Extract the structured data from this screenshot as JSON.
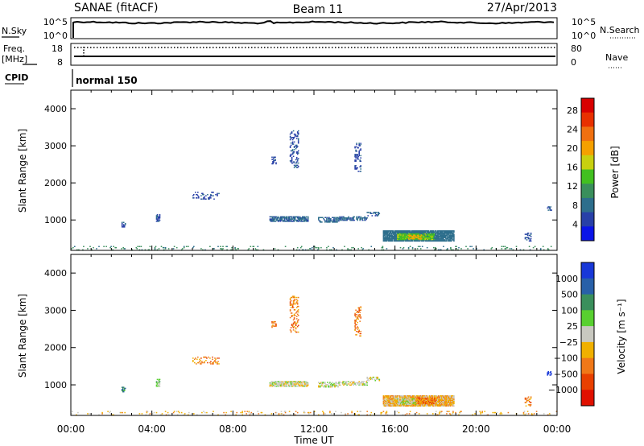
{
  "header": {
    "title": "SANAE (fitACF)",
    "beam": "Beam 11",
    "date": "27/Apr/2013"
  },
  "top_panels": {
    "nsky_label": "N.Sky",
    "nsky_ticks": [
      "10^5",
      "10^0"
    ],
    "nsearch_label": "N.Search",
    "nsearch_ticks": [
      "10^5",
      "10^0"
    ],
    "freq_label": "Freq.",
    "freq_unit": "[MHz]",
    "freq_ticks": [
      "18",
      "8"
    ],
    "nave_label": "Nave",
    "nave_ticks": [
      "80",
      "0"
    ],
    "cpid_label": "CPID",
    "cpid_value": "normal 150"
  },
  "x_axis": {
    "ticks": [
      "00:00",
      "04:00",
      "08:00",
      "12:00",
      "16:00",
      "20:00",
      "00:00"
    ],
    "label": "Time UT"
  },
  "chart_data": [
    {
      "type": "heatmap",
      "name": "power",
      "xlabel": "Time UT",
      "ylabel": "Slant Range [km]",
      "xlim": [
        0,
        24
      ],
      "ylim": [
        180,
        4500
      ],
      "yticks": [
        "1000",
        "2000",
        "3000",
        "4000"
      ],
      "colorbar_label": "Power [dB]",
      "colorbar_ticks": [
        "4",
        "8",
        "12",
        "16",
        "20",
        "24",
        "28"
      ],
      "colors": [
        "#0a14e8",
        "#2840a8",
        "#2d6e8c",
        "#3a8f5c",
        "#42c020",
        "#c8d010",
        "#f5a000",
        "#f07010",
        "#e83000",
        "#d80000"
      ],
      "colorbar_range": [
        0,
        30
      ],
      "echo_regions": [
        {
          "t0": 9.8,
          "t1": 11.7,
          "r0": 950,
          "r1": 1080,
          "value": 6,
          "density": 0.75
        },
        {
          "t0": 12.2,
          "t1": 13.2,
          "r0": 930,
          "r1": 1060,
          "value": 6,
          "density": 0.55
        },
        {
          "t0": 13.2,
          "t1": 14.6,
          "r0": 980,
          "r1": 1100,
          "value": 6,
          "density": 0.5
        },
        {
          "t0": 14.6,
          "t1": 15.2,
          "r0": 1100,
          "r1": 1200,
          "value": 6,
          "density": 0.4
        },
        {
          "t0": 15.4,
          "t1": 18.9,
          "r0": 420,
          "r1": 700,
          "value": 7,
          "density": 0.9
        },
        {
          "t0": 16.1,
          "t1": 17.9,
          "r0": 460,
          "r1": 620,
          "value": 14,
          "density": 0.7
        },
        {
          "t0": 16.6,
          "t1": 17.3,
          "r0": 480,
          "r1": 580,
          "value": 19,
          "density": 0.5
        },
        {
          "t0": 10.8,
          "t1": 11.2,
          "r0": 2400,
          "r1": 3400,
          "value": 5,
          "density": 0.25
        },
        {
          "t0": 14.0,
          "t1": 14.3,
          "r0": 2300,
          "r1": 3100,
          "value": 5,
          "density": 0.25
        },
        {
          "t0": 9.9,
          "t1": 10.1,
          "r0": 2500,
          "r1": 2700,
          "value": 5,
          "density": 0.4
        },
        {
          "t0": 2.5,
          "t1": 2.7,
          "r0": 800,
          "r1": 950,
          "value": 5,
          "density": 0.6
        },
        {
          "t0": 4.2,
          "t1": 4.4,
          "r0": 950,
          "r1": 1150,
          "value": 5,
          "density": 0.6
        },
        {
          "t0": 6.0,
          "t1": 7.3,
          "r0": 1550,
          "r1": 1750,
          "value": 5,
          "density": 0.2
        },
        {
          "t0": 22.4,
          "t1": 22.7,
          "r0": 420,
          "r1": 680,
          "value": 5,
          "density": 0.4
        },
        {
          "t0": 23.5,
          "t1": 23.7,
          "r0": 1250,
          "r1": 1350,
          "value": 5,
          "density": 0.6
        },
        {
          "t0": 0.0,
          "t1": 24.0,
          "r0": 180,
          "r1": 300,
          "value": 9,
          "density": 0.08
        }
      ]
    },
    {
      "type": "heatmap",
      "name": "velocity",
      "xlabel": "Time UT",
      "ylabel": "Slant Range [km]",
      "xlim": [
        0,
        24
      ],
      "ylim": [
        180,
        4500
      ],
      "yticks": [
        "1000",
        "2000",
        "3000",
        "4000"
      ],
      "colorbar_label": "Velocity [m s⁻¹]",
      "colorbar_ticks": [
        "1000",
        "500",
        "100",
        "25",
        "−25",
        "−100",
        "−500",
        "−1000"
      ],
      "colors": [
        "#1838d8",
        "#2860a8",
        "#3a8f5c",
        "#58d030",
        "#c8c8c0",
        "#f0b000",
        "#f07818",
        "#e84000",
        "#e01000"
      ],
      "echo_regions": [
        {
          "t0": 9.8,
          "t1": 11.7,
          "r0": 950,
          "r1": 1080,
          "value": 4,
          "density": 0.75
        },
        {
          "t0": 12.2,
          "t1": 13.2,
          "r0": 930,
          "r1": 1060,
          "value": 4,
          "density": 0.55
        },
        {
          "t0": 13.2,
          "t1": 14.6,
          "r0": 980,
          "r1": 1100,
          "value": 4,
          "density": 0.5
        },
        {
          "t0": 14.6,
          "t1": 15.2,
          "r0": 1100,
          "r1": 1200,
          "value": 4,
          "density": 0.4
        },
        {
          "t0": 15.4,
          "t1": 18.9,
          "r0": 420,
          "r1": 700,
          "value": 5,
          "density": 0.9
        },
        {
          "t0": 16.1,
          "t1": 17.0,
          "r0": 460,
          "r1": 640,
          "value": 4,
          "density": 0.6
        },
        {
          "t0": 17.0,
          "t1": 18.0,
          "r0": 480,
          "r1": 640,
          "value": 6,
          "density": 0.6
        },
        {
          "t0": 10.8,
          "t1": 11.2,
          "r0": 2400,
          "r1": 3400,
          "value": 6,
          "density": 0.25
        },
        {
          "t0": 14.0,
          "t1": 14.3,
          "r0": 2300,
          "r1": 3100,
          "value": 6,
          "density": 0.25
        },
        {
          "t0": 9.9,
          "t1": 10.1,
          "r0": 2500,
          "r1": 2700,
          "value": 6,
          "density": 0.4
        },
        {
          "t0": 2.5,
          "t1": 2.7,
          "r0": 800,
          "r1": 950,
          "value": 2,
          "density": 0.6
        },
        {
          "t0": 4.2,
          "t1": 4.4,
          "r0": 950,
          "r1": 1150,
          "value": 3,
          "density": 0.6
        },
        {
          "t0": 6.0,
          "t1": 7.3,
          "r0": 1550,
          "r1": 1750,
          "value": 6,
          "density": 0.2
        },
        {
          "t0": 22.4,
          "t1": 22.7,
          "r0": 420,
          "r1": 680,
          "value": 6,
          "density": 0.4
        },
        {
          "t0": 23.5,
          "t1": 23.7,
          "r0": 1250,
          "r1": 1350,
          "value": 0,
          "density": 0.6
        },
        {
          "t0": 0.0,
          "t1": 24.0,
          "r0": 180,
          "r1": 300,
          "value": 5,
          "density": 0.08
        }
      ]
    }
  ]
}
